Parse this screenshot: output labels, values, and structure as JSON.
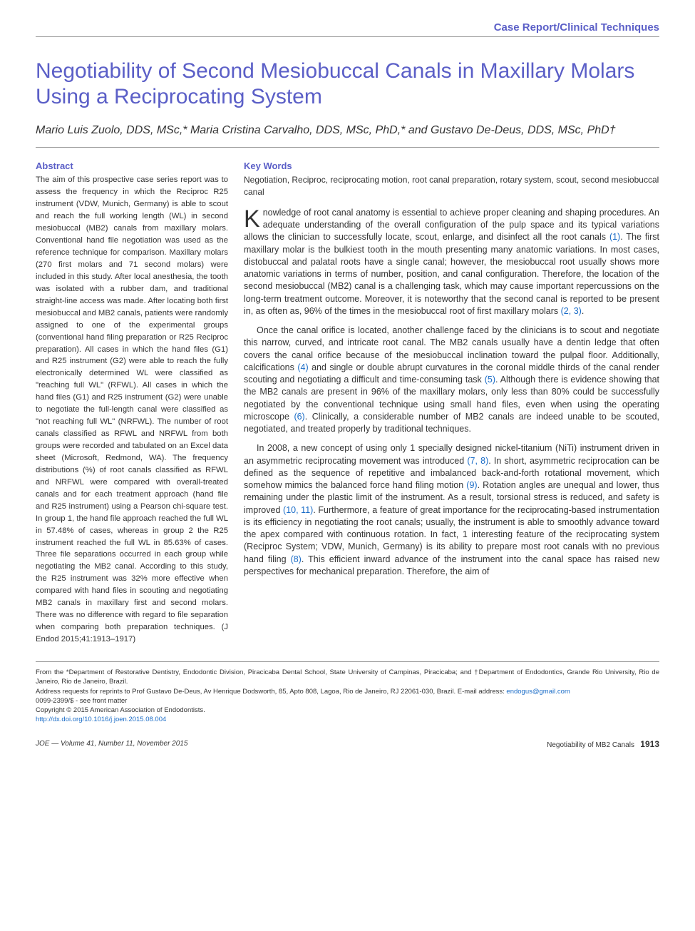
{
  "colors": {
    "accent": "#5b5fc7",
    "link": "#1a6cc7",
    "text": "#333333",
    "rule": "#999999",
    "background": "#ffffff"
  },
  "typography": {
    "title_fontsize": 30,
    "authors_fontsize": 16,
    "heading_fontsize": 13,
    "abstract_fontsize": 11.3,
    "body_fontsize": 12.5,
    "footer_fontsize": 9.5
  },
  "section_header": "Case Report/Clinical Techniques",
  "title": "Negotiability of Second Mesiobuccal Canals in Maxillary Molars Using a Reciprocating System",
  "authors": "Mario Luis Zuolo, DDS, MSc,* Maria Cristina Carvalho, DDS, MSc, PhD,* and Gustavo De-Deus, DDS, MSc, PhD†",
  "abstract_heading": "Abstract",
  "abstract": "The aim of this prospective case series report was to assess the frequency in which the Reciproc R25 instrument (VDW, Munich, Germany) is able to scout and reach the full working length (WL) in second mesiobuccal (MB2) canals from maxillary molars. Conventional hand file negotiation was used as the reference technique for comparison. Maxillary molars (270 first molars and 71 second molars) were included in this study. After local anesthesia, the tooth was isolated with a rubber dam, and traditional straight-line access was made. After locating both first mesiobuccal and MB2 canals, patients were randomly assigned to one of the experimental groups (conventional hand filing preparation or R25 Reciproc preparation). All cases in which the hand files (G1) and R25 instrument (G2) were able to reach the fully electronically determined WL were classified as \"reaching full WL\" (RFWL). All cases in which the hand files (G1) and R25 instrument (G2) were unable to negotiate the full-length canal were classified as \"not reaching full WL\" (NRFWL). The number of root canals classified as RFWL and NRFWL from both groups were recorded and tabulated on an Excel data sheet (Microsoft, Redmond, WA). The frequency distributions (%) of root canals classified as RFWL and NRFWL were compared with overall-treated canals and for each treatment approach (hand file and R25 instrument) using a Pearson chi-square test. In group 1, the hand file approach reached the full WL in 57.48% of cases, whereas in group 2 the R25 instrument reached the full WL in 85.63% of cases. Three file separations occurred in each group while negotiating the MB2 canal. According to this study, the R25 instrument was 32% more effective when compared with hand files in scouting and negotiating MB2 canals in maxillary first and second molars. There was no difference with regard to file separation when comparing both preparation techniques. (J Endod 2015;41:1913–1917)",
  "keywords_heading": "Key Words",
  "keywords": "Negotiation, Reciproc, reciprocating motion, root canal preparation, rotary system, scout, second mesiobuccal canal",
  "body": {
    "p1_dropcap": "K",
    "p1": "nowledge of root canal anatomy is essential to achieve proper cleaning and shaping procedures. An adequate understanding of the overall configuration of the pulp space and its typical variations allows the clinician to successfully locate, scout, enlarge, and disinfect all the root canals ",
    "p1_ref1": "(1)",
    "p1_cont": ". The first maxillary molar is the bulkiest tooth in the mouth presenting many anatomic variations. In most cases, distobuccal and palatal roots have a single canal; however, the mesiobuccal root usually shows more anatomic variations in terms of number, position, and canal configuration. Therefore, the location of the second mesiobuccal (MB2) canal is a challenging task, which may cause important repercussions on the long-term treatment outcome. Moreover, it is noteworthy that the second canal is reported to be present in, as often as, 96% of the times in the mesiobuccal root of first maxillary molars ",
    "p1_ref2": "(2, 3)",
    "p1_end": ".",
    "p2": "Once the canal orifice is located, another challenge faced by the clinicians is to scout and negotiate this narrow, curved, and intricate root canal. The MB2 canals usually have a dentin ledge that often covers the canal orifice because of the mesiobuccal inclination toward the pulpal floor. Additionally, calcifications ",
    "p2_ref1": "(4)",
    "p2_cont": " and single or double abrupt curvatures in the coronal middle thirds of the canal render scouting and negotiating a difficult and time-consuming task ",
    "p2_ref2": "(5)",
    "p2_cont2": ". Although there is evidence showing that the MB2 canals are present in 96% of the maxillary molars, only less than 80% could be successfully negotiated by the conventional technique using small hand files, even when using the operating microscope ",
    "p2_ref3": "(6)",
    "p2_end": ". Clinically, a considerable number of MB2 canals are indeed unable to be scouted, negotiated, and treated properly by traditional techniques.",
    "p3": "In 2008, a new concept of using only 1 specially designed nickel-titanium (NiTi) instrument driven in an asymmetric reciprocating movement was introduced ",
    "p3_ref1": "(7, 8)",
    "p3_cont": ". In short, asymmetric reciprocation can be defined as the sequence of repetitive and imbalanced back-and-forth rotational movement, which somehow mimics the balanced force hand filing motion ",
    "p3_ref2": "(9)",
    "p3_cont2": ". Rotation angles are unequal and lower, thus remaining under the plastic limit of the instrument. As a result, torsional stress is reduced, and safety is improved ",
    "p3_ref3": "(10, 11)",
    "p3_cont3": ". Furthermore, a feature of great importance for the reciprocating-based instrumentation is its efficiency in negotiating the root canals; usually, the instrument is able to smoothly advance toward the apex compared with continuous rotation. In fact, 1 interesting feature of the reciprocating system (Reciproc System; VDW, Munich, Germany) is its ability to prepare most root canals with no previous hand filing ",
    "p3_ref4": "(8)",
    "p3_end": ". This efficient inward advance of the instrument into the canal space has raised new perspectives for mechanical preparation. Therefore, the aim of"
  },
  "footer": {
    "affiliation": "From the *Department of Restorative Dentistry, Endodontic Division, Piracicaba Dental School, State University of Campinas, Piracicaba; and †Department of Endodontics, Grande Rio University, Rio de Janeiro, Rio de Janeiro, Brazil.",
    "correspondence_pre": "Address requests for reprints to Prof Gustavo De-Deus, Av Henrique Dodsworth, 85, Apto 808, Lagoa, Rio de Janeiro, RJ 22061-030, Brazil. E-mail address: ",
    "email": "endogus@gmail.com",
    "issn": "0099-2399/$ - see front matter",
    "copyright": "Copyright © 2015 American Association of Endodontists.",
    "doi": "http://dx.doi.org/10.1016/j.joen.2015.08.004"
  },
  "page_footer": {
    "left": "JOE — Volume 41, Number 11, November 2015",
    "right_text": "Negotiability of MB2 Canals",
    "page": "1913"
  }
}
